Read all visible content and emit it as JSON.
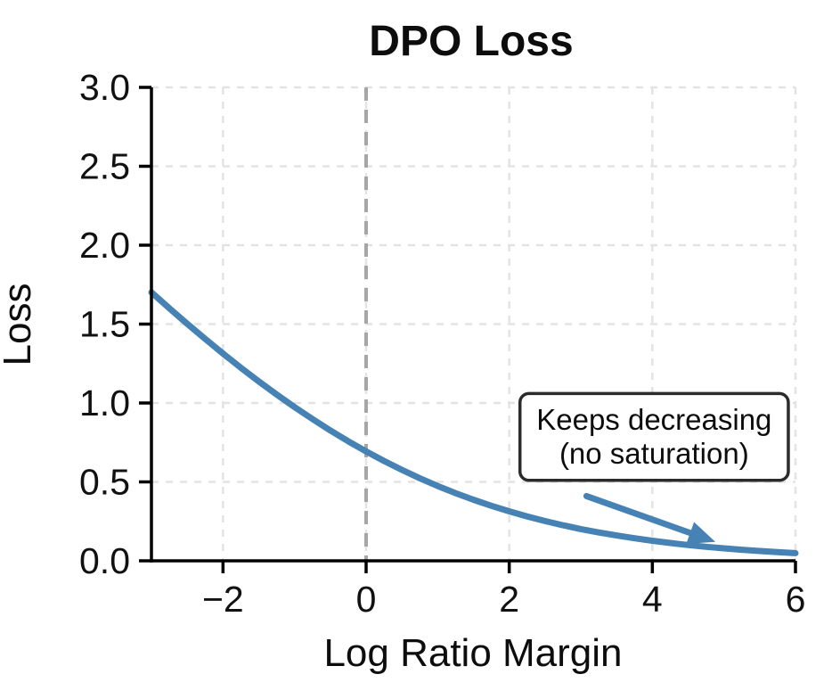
{
  "chart_data": {
    "type": "line",
    "title": "DPO Loss",
    "xlabel": "Log Ratio Margin",
    "ylabel": "Loss",
    "xlim": [
      -3,
      6
    ],
    "ylim": [
      0,
      3.0
    ],
    "grid": "dashed-lightgray",
    "legend": "none",
    "xticks": {
      "values": [
        -2,
        0,
        2,
        4,
        6
      ],
      "labels": [
        "−2",
        "0",
        "2",
        "4",
        "6"
      ]
    },
    "yticks": {
      "values": [
        0,
        0.5,
        1.0,
        1.5,
        2.0,
        2.5,
        3.0
      ],
      "labels": [
        "0.0",
        "0.5",
        "1.0",
        "1.5",
        "2.0",
        "2.5",
        "3.0"
      ]
    },
    "series": [
      {
        "name": "dpo-loss-curve",
        "color": "#4682b4",
        "x": [
          -3,
          -2.75,
          -2.5,
          -2.25,
          -2,
          -1.75,
          -1.5,
          -1.25,
          -1,
          -0.75,
          -0.5,
          -0.25,
          0,
          0.25,
          0.5,
          0.75,
          1,
          1.25,
          1.5,
          1.75,
          2,
          2.25,
          2.5,
          2.75,
          3,
          3.25,
          3.5,
          3.75,
          4,
          4.25,
          4.5,
          4.75,
          5,
          5.25,
          5.5,
          5.75,
          6
        ],
        "y": [
          1.7014,
          1.6004,
          1.5019,
          1.4061,
          1.3133,
          1.2234,
          1.1369,
          1.0537,
          0.9741,
          0.8981,
          0.8259,
          0.7577,
          0.6931,
          0.6326,
          0.576,
          0.5232,
          0.4741,
          0.4288,
          0.3869,
          0.3485,
          0.3133,
          0.2812,
          0.2519,
          0.2254,
          0.2014,
          0.1797,
          0.1602,
          0.1427,
          0.1269,
          0.1128,
          0.1002,
          0.0889,
          0.0789,
          0.0699,
          0.062,
          0.0549,
          0.0486
        ]
      }
    ],
    "reference_lines": [
      {
        "orientation": "vertical",
        "x": 0,
        "color": "#a6a6a6",
        "style": "dashed"
      }
    ],
    "annotation": {
      "text_line1": "Keeps decreasing",
      "text_line2": "(no saturation)",
      "box_fill": "#ffffff",
      "border_color": "#2b2b2b",
      "box_data_coords": {
        "x0": 2.15,
        "x1": 5.9,
        "y0": 0.51,
        "y1": 1.06
      },
      "arrow": {
        "color": "#4682b4",
        "tail": {
          "x": 3.08,
          "y": 0.41
        },
        "tip": {
          "x": 4.88,
          "y": 0.12
        }
      }
    },
    "colors": {
      "curve": "#4682b4",
      "grid": "#e3e3e3",
      "spine": "#000000",
      "vline": "#a6a6a6",
      "text": "#111111"
    }
  }
}
